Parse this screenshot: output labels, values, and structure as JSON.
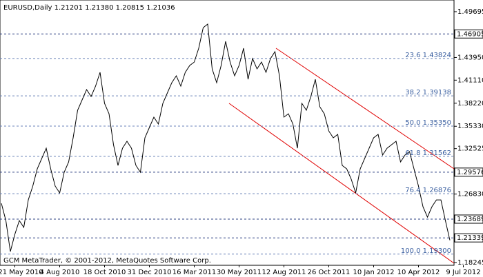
{
  "chart_data": {
    "type": "line",
    "title": "EURUSD,Daily  1.21201 1.21380 1.20815 1.21036",
    "footer": "GCM MetaTrader, © 2001-2012, MetaQuotes Software Corp.",
    "categories": [
      null,
      null,
      null,
      "21 May 2010",
      null,
      null,
      null,
      null,
      null,
      null,
      null,
      null,
      null,
      "4 Aug 2010",
      null,
      null,
      null,
      null,
      null,
      null,
      null,
      null,
      null,
      "18 Oct 2010",
      null,
      null,
      null,
      null,
      null,
      null,
      null,
      null,
      null,
      "31 Dec 2010",
      null,
      null,
      null,
      null,
      null,
      null,
      null,
      null,
      null,
      "16 Mar 2011",
      null,
      null,
      null,
      null,
      null,
      null,
      null,
      null,
      null,
      "30 May 2011",
      null,
      null,
      null,
      null,
      null,
      null,
      null,
      null,
      null,
      "12 Aug 2011",
      null,
      null,
      null,
      null,
      null,
      null,
      null,
      null,
      null,
      "26 Oct 2011",
      null,
      null,
      null,
      null,
      null,
      null,
      null,
      null,
      null,
      "10 Jan 2012",
      null,
      null,
      null,
      null,
      null,
      null,
      null,
      null,
      null,
      "10 Apr 2012",
      null,
      null,
      null,
      null,
      null,
      null,
      null,
      null,
      null,
      "9 Jul 2012"
    ],
    "series": [
      {
        "name": "EURUSD",
        "color": "#000000",
        "values": [
          1.2567,
          1.2351,
          1.1962,
          1.2178,
          1.2351,
          1.2265,
          1.261,
          1.2783,
          1.2999,
          1.3129,
          1.3258,
          1.2999,
          1.2783,
          1.2697,
          1.2956,
          1.3086,
          1.3388,
          1.3734,
          1.3863,
          1.3993,
          1.3906,
          1.4036,
          1.4209,
          1.382,
          1.369,
          1.3302,
          1.3042,
          1.3258,
          1.3345,
          1.3258,
          1.3042,
          1.2956,
          1.3388,
          1.3518,
          1.3647,
          1.3561,
          1.382,
          1.395,
          1.4079,
          1.4166,
          1.4036,
          1.4209,
          1.4295,
          1.4338,
          1.4511,
          1.477,
          1.4814,
          1.4252,
          1.4079,
          1.4295,
          1.4598,
          1.4338,
          1.4166,
          1.4295,
          1.4511,
          1.4122,
          1.4382,
          1.4252,
          1.4338,
          1.4209,
          1.4382,
          1.4468,
          1.4166,
          1.3647,
          1.369,
          1.3561,
          1.3258,
          1.382,
          1.3734,
          1.3906,
          1.4122,
          1.3777,
          1.369,
          1.3474,
          1.3388,
          1.3431,
          1.3042,
          1.2999,
          1.287,
          1.2697,
          1.2999,
          1.3129,
          1.3258,
          1.3388,
          1.3431,
          1.3172,
          1.3258,
          1.3302,
          1.3345,
          1.3086,
          1.3172,
          1.3215,
          1.2999,
          1.2783,
          1.2524,
          1.2394,
          1.2524,
          1.261,
          1.261,
          1.2351,
          1.2104,
          null,
          null,
          null
        ]
      }
    ],
    "ylim": [
      1.179,
      1.5116
    ],
    "yticks": [
      1.49695,
      {
        "value": 1.4395,
        "label": "1.43950"
      },
      {
        "value": 1.4111,
        "label": "1.41110"
      },
      {
        "value": 1.3822,
        "label": "1.38220"
      },
      {
        "value": 1.3533,
        "label": "1.35330"
      },
      1.32525,
      {
        "value": 1.2683,
        "label": "1.26830"
      },
      1.18245
    ],
    "grid": false,
    "hlines": [
      1.46905,
      1.29576,
      1.23689,
      1.21339
    ],
    "fib_levels": [
      {
        "label": "23.6 1.43824",
        "value": 1.43824
      },
      {
        "label": "38.2 1.39138",
        "value": 1.39138
      },
      {
        "label": "50.0 1.35350",
        "value": 1.3535
      },
      {
        "label": "61.8 1.31562",
        "value": 1.31562
      },
      {
        "label": "76.4 1.26876",
        "value": 1.26876
      },
      {
        "label": "100.0 1.19300",
        "value": 1.193
      }
    ]
  }
}
